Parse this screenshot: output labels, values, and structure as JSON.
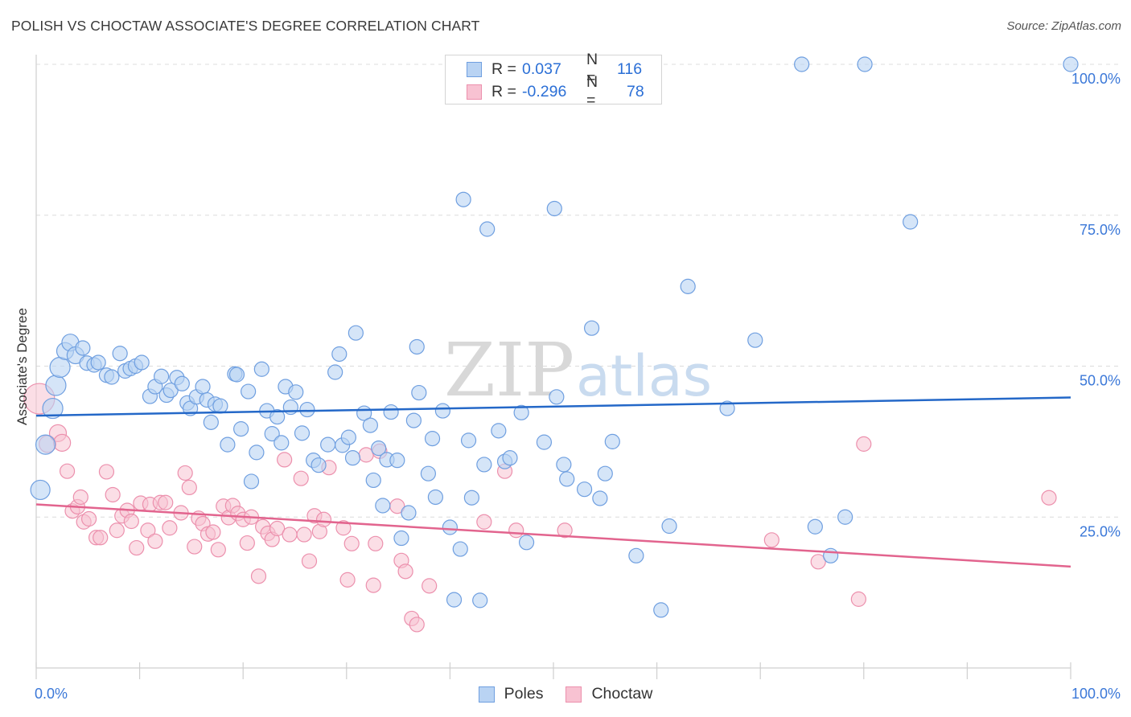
{
  "title": "POLISH VS CHOCTAW ASSOCIATE'S DEGREE CORRELATION CHART",
  "source": "Source: ZipAtlas.com",
  "watermark": {
    "zip": "ZIP",
    "atlas": "atlas"
  },
  "legend": {
    "poles": {
      "r_label": "R =",
      "r_value": "0.037",
      "n_label": "N =",
      "n_value": "116"
    },
    "choctaw": {
      "r_label": "R =",
      "r_value": "-0.296",
      "n_label": "N =",
      "n_value": "78"
    }
  },
  "bottom_legend": {
    "poles": "Poles",
    "choctaw": "Choctaw"
  },
  "colors": {
    "poles_fill": "#b9d3f3",
    "poles_stroke": "#6f9fe0",
    "poles_line": "#2468c8",
    "choctaw_fill": "#f8c2d2",
    "choctaw_stroke": "#ec90ad",
    "choctaw_line": "#e2648e",
    "tick_text": "#3b78d8",
    "grid": "#dcdcdc"
  },
  "chart_data": {
    "type": "scatter",
    "title": "POLISH VS CHOCTAW ASSOCIATE'S DEGREE CORRELATION CHART",
    "xlabel": "",
    "ylabel": "Associate's Degree",
    "xlim": [
      0,
      100
    ],
    "ylim": [
      0,
      100
    ],
    "x_tick_labels": [
      "0.0%",
      "100.0%"
    ],
    "y_tick_values": [
      25,
      50,
      75,
      100
    ],
    "y_tick_labels": [
      "25.0%",
      "50.0%",
      "75.0%",
      "100.0%"
    ],
    "grid": true,
    "legend_position": "top-center",
    "series": [
      {
        "name": "Poles",
        "r": 0.037,
        "n": 116,
        "trend": {
          "x0": 0,
          "y0": 41.8,
          "x1": 100,
          "y1": 44.8
        },
        "points": [
          [
            0.4,
            29.5
          ],
          [
            0.9,
            37
          ],
          [
            1.6,
            43
          ],
          [
            1.9,
            46.8
          ],
          [
            2.3,
            49.8
          ],
          [
            2.8,
            52.5
          ],
          [
            3.3,
            53.9
          ],
          [
            3.8,
            51.8
          ],
          [
            4.5,
            53
          ],
          [
            4.9,
            50.5
          ],
          [
            5.6,
            50.2
          ],
          [
            6.0,
            50.6
          ],
          [
            6.8,
            48.5
          ],
          [
            7.3,
            48.2
          ],
          [
            8.1,
            52.1
          ],
          [
            8.6,
            49.2
          ],
          [
            9.1,
            49.6
          ],
          [
            9.6,
            50
          ],
          [
            10.2,
            50.6
          ],
          [
            11.0,
            45
          ],
          [
            11.5,
            46.6
          ],
          [
            12.1,
            48.3
          ],
          [
            12.6,
            45.2
          ],
          [
            13.0,
            46
          ],
          [
            13.6,
            48.1
          ],
          [
            14.1,
            47.1
          ],
          [
            14.6,
            43.9
          ],
          [
            14.9,
            43
          ],
          [
            15.5,
            44.9
          ],
          [
            16.1,
            46.6
          ],
          [
            16.5,
            44.4
          ],
          [
            16.9,
            40.7
          ],
          [
            17.3,
            43.7
          ],
          [
            17.8,
            43.4
          ],
          [
            18.5,
            37
          ],
          [
            19.2,
            48.7
          ],
          [
            19.4,
            48.6
          ],
          [
            19.8,
            39.6
          ],
          [
            20.5,
            45.8
          ],
          [
            20.8,
            30.9
          ],
          [
            21.3,
            35.7
          ],
          [
            21.8,
            49.5
          ],
          [
            22.3,
            42.6
          ],
          [
            22.8,
            38.8
          ],
          [
            23.3,
            41.6
          ],
          [
            23.7,
            37.3
          ],
          [
            24.1,
            46.6
          ],
          [
            24.6,
            43.2
          ],
          [
            25.1,
            45.7
          ],
          [
            25.7,
            38.9
          ],
          [
            26.2,
            42.8
          ],
          [
            26.8,
            34.4
          ],
          [
            27.3,
            33.6
          ],
          [
            28.2,
            37
          ],
          [
            28.9,
            49
          ],
          [
            29.3,
            52
          ],
          [
            29.6,
            36.9
          ],
          [
            30.2,
            38.2
          ],
          [
            30.6,
            34.8
          ],
          [
            30.9,
            55.5
          ],
          [
            31.7,
            42.2
          ],
          [
            32.3,
            40.2
          ],
          [
            32.6,
            31.1
          ],
          [
            33.1,
            36.4
          ],
          [
            33.5,
            26.9
          ],
          [
            33.9,
            34.5
          ],
          [
            34.3,
            42.4
          ],
          [
            34.9,
            34.4
          ],
          [
            35.3,
            21.5
          ],
          [
            36.0,
            25.7
          ],
          [
            36.5,
            41
          ],
          [
            36.8,
            53.2
          ],
          [
            37.0,
            45.6
          ],
          [
            37.9,
            32.2
          ],
          [
            38.3,
            38
          ],
          [
            38.6,
            28.3
          ],
          [
            39.3,
            42.6
          ],
          [
            40.0,
            23.3
          ],
          [
            40.4,
            11.3
          ],
          [
            41.0,
            19.7
          ],
          [
            41.3,
            77.6
          ],
          [
            41.8,
            37.7
          ],
          [
            42.1,
            28.2
          ],
          [
            42.9,
            11.2
          ],
          [
            43.3,
            33.7
          ],
          [
            43.6,
            72.7
          ],
          [
            44.7,
            39.3
          ],
          [
            45.3,
            34.2
          ],
          [
            45.8,
            34.8
          ],
          [
            46.9,
            42.3
          ],
          [
            47.4,
            20.8
          ],
          [
            49.1,
            37.4
          ],
          [
            50.1,
            76.1
          ],
          [
            50.3,
            44.9
          ],
          [
            51.0,
            33.7
          ],
          [
            51.3,
            31.3
          ],
          [
            53.0,
            29.6
          ],
          [
            53.7,
            56.3
          ],
          [
            54.5,
            28.1
          ],
          [
            55.0,
            32.2
          ],
          [
            55.7,
            37.5
          ],
          [
            58.0,
            18.6
          ],
          [
            60.4,
            9.6
          ],
          [
            61.2,
            23.5
          ],
          [
            63.0,
            63.2
          ],
          [
            66.8,
            43
          ],
          [
            69.5,
            54.3
          ],
          [
            74.0,
            100
          ],
          [
            75.3,
            23.4
          ],
          [
            76.8,
            18.6
          ],
          [
            78.2,
            25
          ],
          [
            80.1,
            100
          ],
          [
            84.5,
            73.9
          ],
          [
            100,
            100
          ]
        ]
      },
      {
        "name": "Choctaw",
        "r": -0.296,
        "n": 78,
        "trend": {
          "x0": 0,
          "y0": 27.1,
          "x1": 100,
          "y1": 16.8
        },
        "points": [
          [
            0.3,
            44.6
          ],
          [
            1.1,
            37.1
          ],
          [
            2.1,
            38.9
          ],
          [
            2.5,
            37.3
          ],
          [
            3.0,
            32.6
          ],
          [
            3.5,
            26
          ],
          [
            4.0,
            26.7
          ],
          [
            4.3,
            28.3
          ],
          [
            4.6,
            24.2
          ],
          [
            5.1,
            24.7
          ],
          [
            5.8,
            21.6
          ],
          [
            6.2,
            21.6
          ],
          [
            6.8,
            32.5
          ],
          [
            7.4,
            28.7
          ],
          [
            7.8,
            22.8
          ],
          [
            8.3,
            25.2
          ],
          [
            8.8,
            26.1
          ],
          [
            9.2,
            24.3
          ],
          [
            9.7,
            19.9
          ],
          [
            10.1,
            27.3
          ],
          [
            10.8,
            22.8
          ],
          [
            11.0,
            27.1
          ],
          [
            11.5,
            21
          ],
          [
            12.0,
            27.4
          ],
          [
            12.5,
            27.4
          ],
          [
            12.9,
            23.2
          ],
          [
            14.0,
            25.7
          ],
          [
            14.4,
            32.3
          ],
          [
            14.8,
            29.9
          ],
          [
            15.3,
            20.1
          ],
          [
            15.7,
            24.8
          ],
          [
            16.1,
            23.9
          ],
          [
            16.6,
            22.2
          ],
          [
            17.1,
            22.5
          ],
          [
            17.6,
            19.6
          ],
          [
            18.1,
            26.8
          ],
          [
            18.6,
            24.9
          ],
          [
            19.0,
            26.9
          ],
          [
            19.5,
            25.6
          ],
          [
            20.0,
            24.6
          ],
          [
            20.4,
            20.7
          ],
          [
            20.8,
            25
          ],
          [
            21.5,
            15.2
          ],
          [
            21.9,
            23.4
          ],
          [
            22.4,
            22.3
          ],
          [
            22.8,
            21.3
          ],
          [
            23.3,
            23.1
          ],
          [
            24.0,
            34.5
          ],
          [
            24.5,
            22.1
          ],
          [
            25.6,
            31.4
          ],
          [
            25.9,
            22.1
          ],
          [
            26.4,
            17.7
          ],
          [
            26.9,
            25.2
          ],
          [
            27.4,
            22.6
          ],
          [
            27.8,
            24.6
          ],
          [
            28.3,
            33.2
          ],
          [
            29.7,
            23.2
          ],
          [
            30.1,
            14.6
          ],
          [
            30.5,
            20.6
          ],
          [
            31.9,
            35.3
          ],
          [
            32.6,
            13.7
          ],
          [
            32.8,
            20.6
          ],
          [
            33.2,
            35.9
          ],
          [
            34.9,
            26.8
          ],
          [
            35.3,
            17.8
          ],
          [
            35.7,
            16
          ],
          [
            36.3,
            8.2
          ],
          [
            36.8,
            7.2
          ],
          [
            38.0,
            13.6
          ],
          [
            43.3,
            24.2
          ],
          [
            45.3,
            32.6
          ],
          [
            46.4,
            22.8
          ],
          [
            51.1,
            22.8
          ],
          [
            71.1,
            21.2
          ],
          [
            75.6,
            17.6
          ],
          [
            79.5,
            11.4
          ],
          [
            80.0,
            37.1
          ],
          [
            97.9,
            28.2
          ]
        ]
      }
    ]
  }
}
